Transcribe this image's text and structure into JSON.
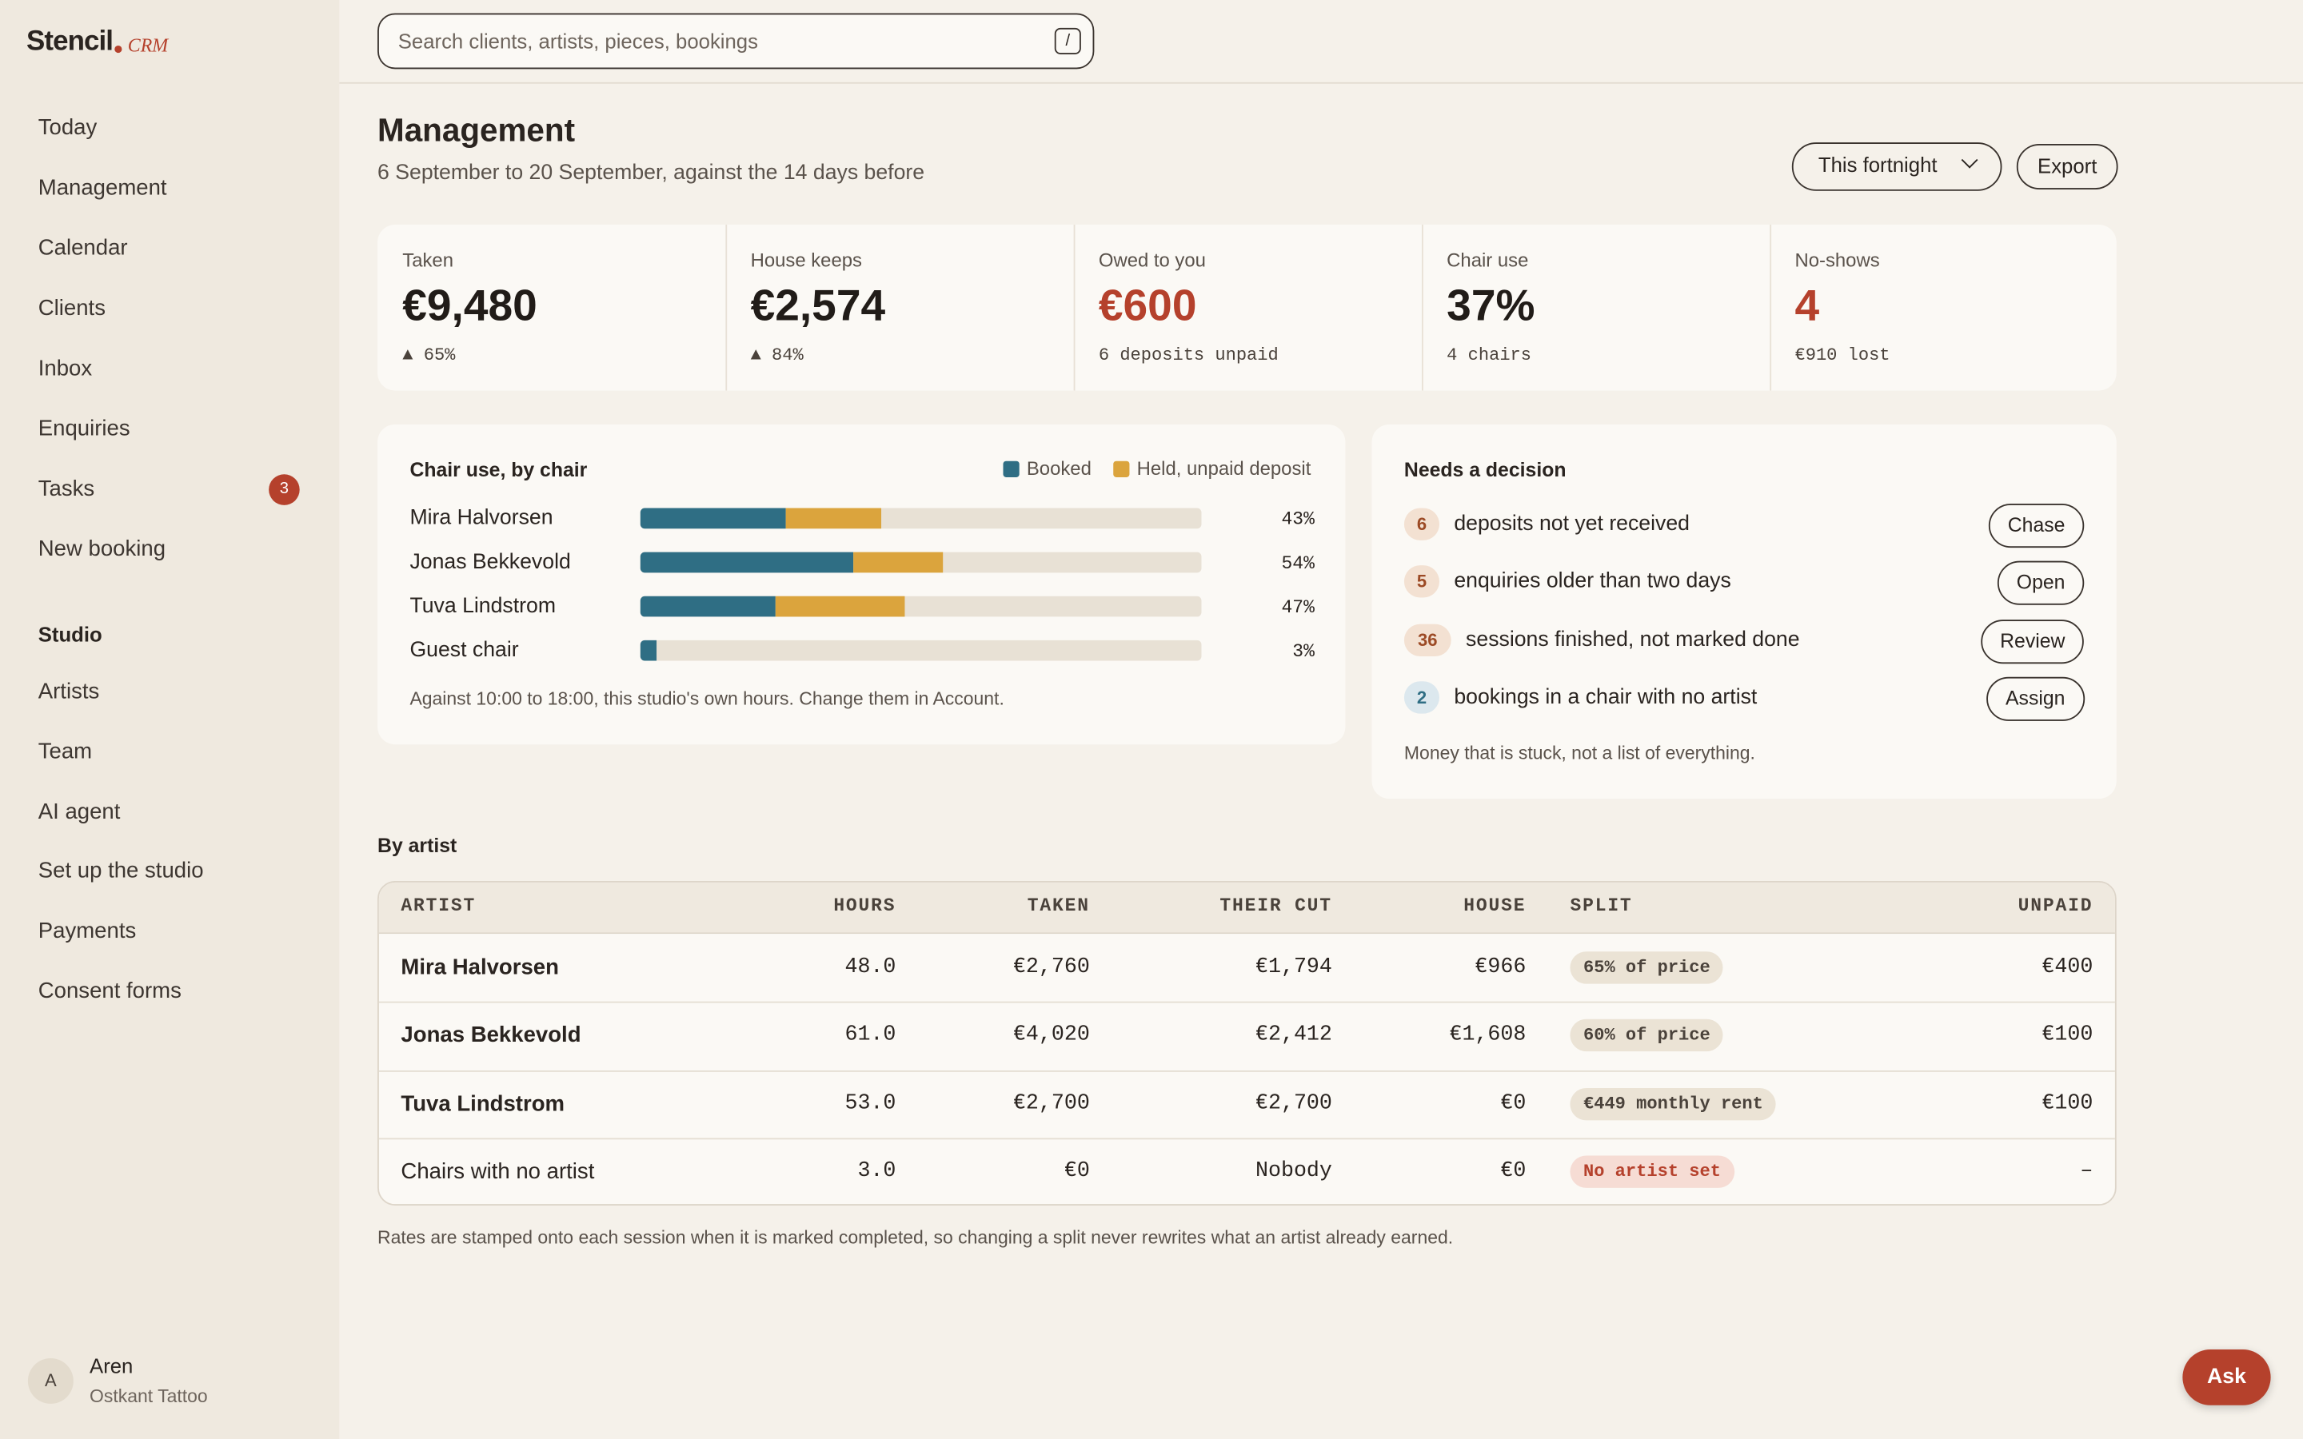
{
  "sidebar": {
    "brand": "Stencil",
    "brand_suffix": "CRM",
    "nav": [
      {
        "label": "Today"
      },
      {
        "label": "Management"
      },
      {
        "label": "Calendar"
      },
      {
        "label": "Clients"
      },
      {
        "label": "Inbox"
      },
      {
        "label": "Enquiries"
      },
      {
        "label": "Tasks",
        "badge": "3"
      },
      {
        "label": "New booking"
      }
    ],
    "section": "Studio",
    "studio_nav": [
      {
        "label": "Artists"
      },
      {
        "label": "Team"
      },
      {
        "label": "AI agent"
      },
      {
        "label": "Set up the studio"
      },
      {
        "label": "Payments"
      },
      {
        "label": "Consent forms"
      }
    ],
    "user": {
      "initial": "A",
      "name": "Aren",
      "studio": "Ostkant Tattoo"
    }
  },
  "search": {
    "placeholder": "Search clients, artists, pieces, bookings",
    "shortcut": "/"
  },
  "header": {
    "title": "Management",
    "subtitle": "6 September to 20 September, against the 14 days before",
    "period": "This fortnight",
    "export": "Export"
  },
  "kpis": [
    {
      "label": "Taken",
      "value": "€9,480",
      "note": "▲ 65%"
    },
    {
      "label": "House keeps",
      "value": "€2,574",
      "note": "▲ 84%"
    },
    {
      "label": "Owed to you",
      "value": "€600",
      "note": "6 deposits unpaid",
      "alert": true
    },
    {
      "label": "Chair use",
      "value": "37%",
      "note": "4 chairs"
    },
    {
      "label": "No-shows",
      "value": "4",
      "note": "€910 lost",
      "alert": true
    }
  ],
  "chair_chart": {
    "type": "bar",
    "title": "Chair use, by chair",
    "categories": [
      "Mira Halvorsen",
      "Jonas Bekkevold",
      "Tuva Lindstrom",
      "Guest chair"
    ],
    "series": [
      {
        "name": "Booked",
        "color": "#2f6e84",
        "values": [
          26,
          38,
          24,
          3
        ]
      },
      {
        "name": "Held, unpaid deposit",
        "color": "#dba43d",
        "values": [
          17,
          16,
          23,
          0
        ]
      }
    ],
    "xlim": [
      0,
      100
    ],
    "total_labels": [
      "43%",
      "54%",
      "47%",
      "3%"
    ],
    "footnote": "Against 10:00 to 18:00, this studio's own hours. Change them in Account."
  },
  "decisions": {
    "title": "Needs a decision",
    "items": [
      {
        "count": "6",
        "text": "deposits not yet received",
        "action": "Chase"
      },
      {
        "count": "5",
        "text": "enquiries older than two days",
        "action": "Open"
      },
      {
        "count": "36",
        "text": "sessions finished, not marked done",
        "action": "Review"
      },
      {
        "count": "2",
        "text": "bookings in a chair with no artist",
        "action": "Assign"
      }
    ],
    "footnote": "Money that is stuck, not a list of everything."
  },
  "by_artist": {
    "title": "By artist",
    "columns": [
      "ARTIST",
      "HOURS",
      "TAKEN",
      "THEIR CUT",
      "HOUSE",
      "SPLIT",
      "UNPAID"
    ],
    "rows": [
      [
        "Mira Halvorsen",
        "48.0",
        "€2,760",
        "€1,794",
        "€966",
        "65% of price",
        "€400"
      ],
      [
        "Jonas Bekkevold",
        "61.0",
        "€4,020",
        "€2,412",
        "€1,608",
        "60% of price",
        "€100"
      ],
      [
        "Tuva Lindstrom",
        "53.0",
        "€2,700",
        "€2,700",
        "€0",
        "€449 monthly rent",
        "€100"
      ],
      [
        "Chairs with no artist",
        "3.0",
        "€0",
        "Nobody",
        "€0",
        "No artist set",
        "–"
      ]
    ],
    "footnote": "Rates are stamped onto each session when it is marked completed, so changing a split never rewrites what an artist already earned."
  },
  "ask": "Ask"
}
